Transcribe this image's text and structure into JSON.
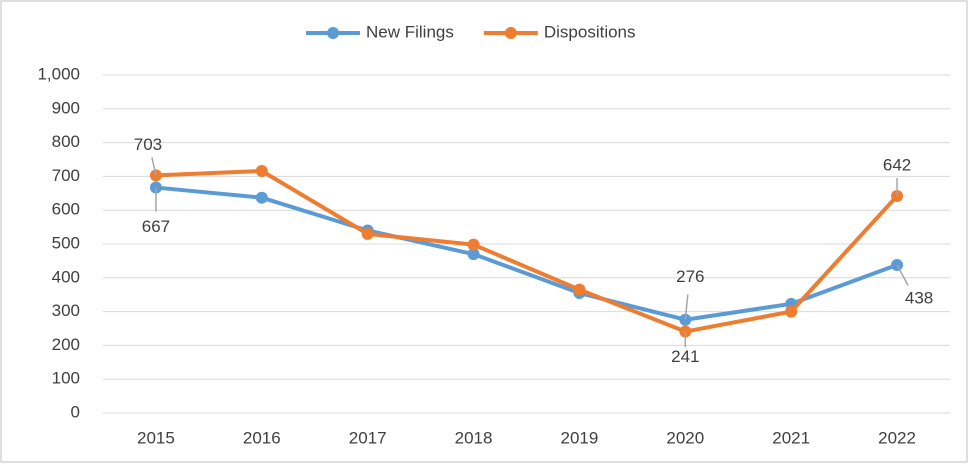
{
  "chart_data": {
    "type": "line",
    "categories": [
      "2015",
      "2016",
      "2017",
      "2018",
      "2019",
      "2020",
      "2021",
      "2022"
    ],
    "series": [
      {
        "name": "New Filings",
        "color": "#5b9bd5",
        "values": [
          667,
          637,
          540,
          470,
          355,
          276,
          323,
          438
        ],
        "value_labels": [
          "667",
          null,
          null,
          null,
          null,
          "276",
          null,
          "438"
        ]
      },
      {
        "name": "Dispositions",
        "color": "#ed7d31",
        "values": [
          703,
          716,
          530,
          498,
          365,
          241,
          300,
          642
        ],
        "value_labels": [
          "703",
          null,
          null,
          null,
          null,
          "241",
          null,
          "642"
        ]
      }
    ],
    "ylim": [
      0,
      1000
    ],
    "yticks": [
      0,
      100,
      200,
      300,
      400,
      500,
      600,
      700,
      800,
      900,
      {
        "value": 1000,
        "label": "1,000"
      }
    ],
    "grid": true,
    "legend": "top"
  }
}
